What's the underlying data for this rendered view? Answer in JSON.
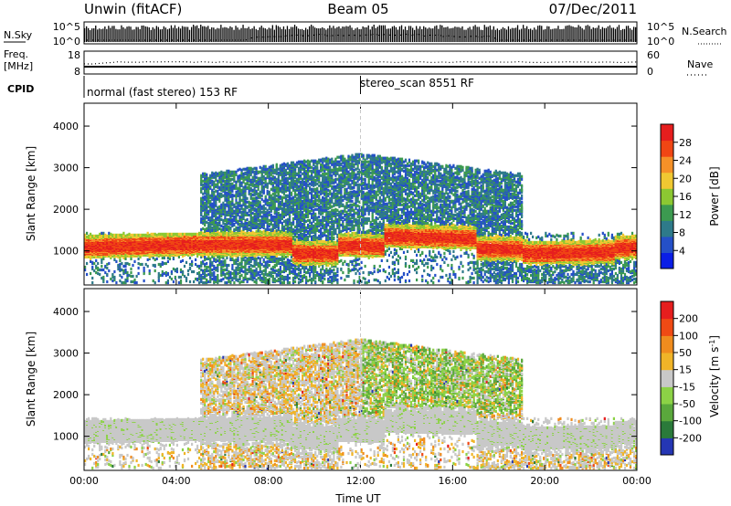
{
  "header": {
    "title_left": "Unwin (fitACF)",
    "title_center": "Beam 05",
    "title_right": "07/Dec/2011"
  },
  "chart_data": [
    {
      "type": "line",
      "panel": "nsky",
      "left_label": "N.Sky",
      "right_label": "N.Search",
      "left_ticks": [
        "10^5",
        "10^0"
      ],
      "right_ticks": [
        "10^5",
        "10^0"
      ]
    },
    {
      "type": "line",
      "panel": "freq",
      "left_label_top": "Freq.",
      "left_label_bottom": "[MHz]",
      "left_ticks": [
        "18",
        "8"
      ],
      "right_label": "Nave",
      "right_ticks": [
        "60",
        "0"
      ]
    },
    {
      "type": "table",
      "panel": "cpid",
      "label": "CPID",
      "segments": [
        {
          "start_hour": 0,
          "end_hour": 12.0,
          "text": "normal (fast stereo) 153 RF"
        },
        {
          "start_hour": 12.0,
          "end_hour": 24,
          "text": "stereo_scan 8551 RF"
        }
      ]
    },
    {
      "type": "heatmap",
      "panel": "power",
      "ylabel": "Slant Range [km]",
      "ylim": [
        180,
        4550
      ],
      "yticks": [
        1000,
        2000,
        3000,
        4000
      ],
      "xlim": [
        0,
        24
      ],
      "colorbar_label": "Power [dB]",
      "colorbar_ticks": [
        "4",
        "8",
        "12",
        "16",
        "20",
        "24",
        "28"
      ],
      "colorbar_range": [
        0,
        32
      ],
      "colors": [
        "#0a1ee6",
        "#2550c8",
        "#2e7a8a",
        "#3c9a50",
        "#8cc832",
        "#f0c832",
        "#f59128",
        "#f04614",
        "#e61e1e"
      ]
    },
    {
      "type": "heatmap",
      "panel": "velocity",
      "ylabel": "Slant Range [km]",
      "ylim": [
        180,
        4550
      ],
      "yticks": [
        1000,
        2000,
        3000,
        4000
      ],
      "xlim": [
        0,
        24
      ],
      "xticks": [
        "00:00",
        "04:00",
        "08:00",
        "12:00",
        "16:00",
        "20:00",
        "00:00"
      ],
      "xlabel": "Time UT",
      "colorbar_label_main": "Velocity [m s",
      "colorbar_label_sup": "-1",
      "colorbar_label_end": "]",
      "colorbar_ticks": [
        "200",
        "100",
        "50",
        "15",
        "-15",
        "-50",
        "-100",
        "-200"
      ],
      "colors": [
        "#2536b4",
        "#2a7a3a",
        "#5aa83c",
        "#8cd246",
        "#c8c8c8",
        "#f0b428",
        "#f08c1e",
        "#f04a14",
        "#e61e1e"
      ]
    }
  ]
}
